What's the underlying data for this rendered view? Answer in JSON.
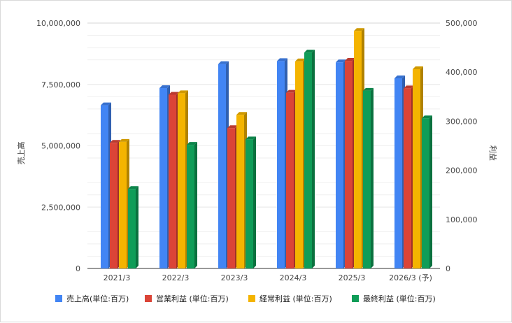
{
  "chart_data": {
    "type": "bar",
    "subtype": "3d-grouped-dual-axis",
    "categories": [
      "2021/3",
      "2022/3",
      "2023/3",
      "2024/3",
      "2025/3",
      "2026/3 (予)"
    ],
    "series": [
      {
        "name": "売上高(単位:百万)",
        "axis": "left",
        "color": "#4285f4",
        "values": [
          6650000,
          7350000,
          8330000,
          8450000,
          8400000,
          7750000
        ]
      },
      {
        "name": "営業利益 (単位:百万)",
        "axis": "right",
        "color": "#db4437",
        "values": [
          256000,
          354000,
          286000,
          358000,
          423000,
          367000
        ]
      },
      {
        "name": "経常利益 (単位:百万)",
        "axis": "right",
        "color": "#f4b400",
        "values": [
          258000,
          357000,
          313000,
          422000,
          484000,
          406000
        ]
      },
      {
        "name": "最終利益 (単位:百万)",
        "axis": "right",
        "color": "#0f9d58",
        "values": [
          162000,
          252000,
          263000,
          440000,
          362000,
          306000
        ]
      }
    ],
    "ylabel": "売上高",
    "y2label": "利益",
    "ylim": [
      0,
      10000000
    ],
    "y2lim": [
      0,
      500000
    ],
    "yticks": [
      "0",
      "2,500,000",
      "5,000,000",
      "7,500,000",
      "10,000,000"
    ],
    "y2ticks": [
      "0",
      "100,000",
      "200,000",
      "300,000",
      "400,000",
      "500,000"
    ],
    "grid": true,
    "legend": "bottom"
  }
}
